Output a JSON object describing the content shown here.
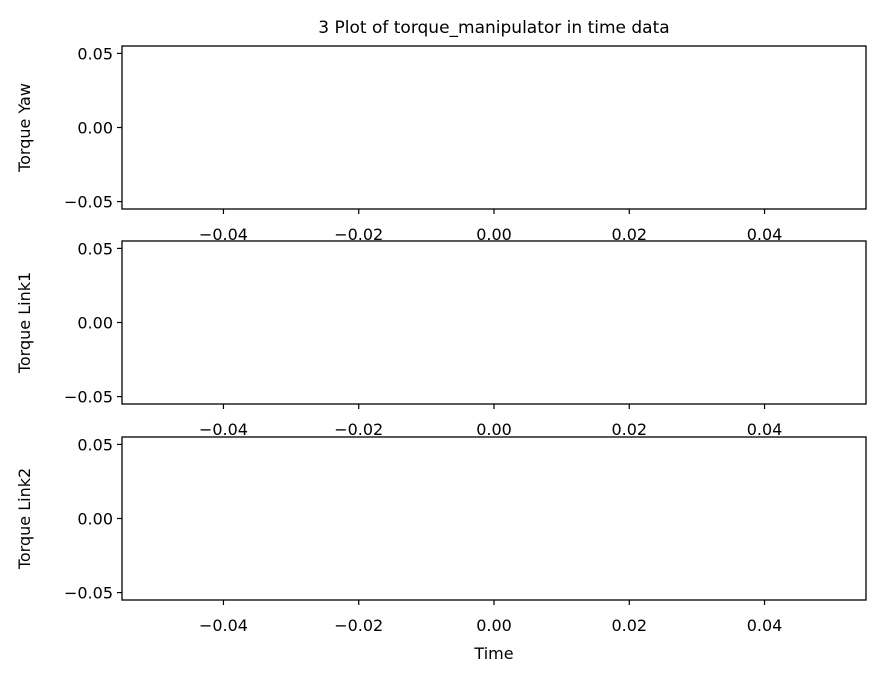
{
  "chart_data": {
    "title": "3 Plot of torque_manipulator in time data",
    "type": "line",
    "xlabel": "Time",
    "xlim": [
      -0.055,
      0.055
    ],
    "x_ticks": [
      -0.04,
      -0.02,
      0.0,
      0.02,
      0.04
    ],
    "x_tick_labels": [
      "−0.04",
      "−0.02",
      "0.00",
      "0.02",
      "0.04"
    ],
    "subplots": [
      {
        "ylabel": "Torque Yaw",
        "ylim": [
          -0.055,
          0.055
        ],
        "y_ticks": [
          -0.05,
          0.0,
          0.05
        ],
        "y_tick_labels": [
          "−0.05",
          "0.00",
          "0.05"
        ],
        "series": [
          {
            "x": [],
            "y": []
          }
        ]
      },
      {
        "ylabel": "Torque Link1",
        "ylim": [
          -0.055,
          0.055
        ],
        "y_ticks": [
          -0.05,
          0.0,
          0.05
        ],
        "y_tick_labels": [
          "−0.05",
          "0.00",
          "0.05"
        ],
        "series": [
          {
            "x": [],
            "y": []
          }
        ]
      },
      {
        "ylabel": "Torque Link2",
        "ylim": [
          -0.055,
          0.055
        ],
        "y_ticks": [
          -0.05,
          0.0,
          0.05
        ],
        "y_tick_labels": [
          "−0.05",
          "0.00",
          "0.05"
        ],
        "series": [
          {
            "x": [],
            "y": []
          }
        ]
      }
    ],
    "grid": false,
    "legend": false
  }
}
